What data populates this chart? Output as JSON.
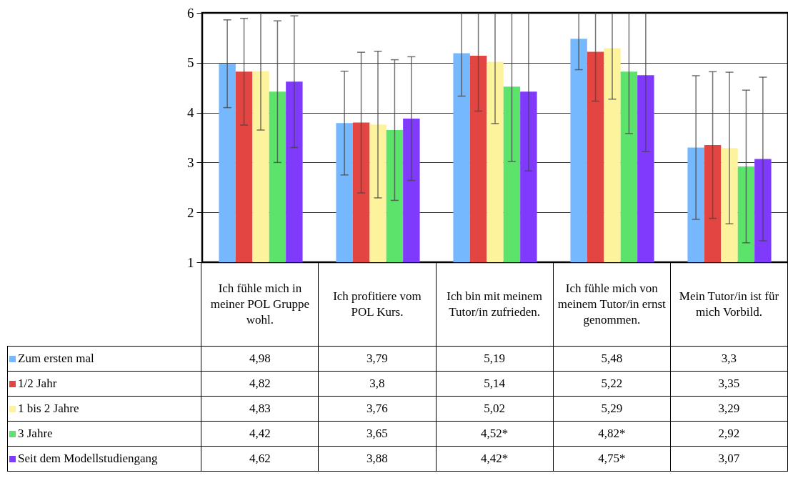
{
  "chart_data": {
    "type": "bar",
    "categories": [
      "Ich fühle mich in meiner POL Gruppe wohl.",
      "Ich profitiere vom POL Kurs.",
      "Ich bin mit meinem Tutor/in zufrieden.",
      "Ich fühle mich von meinem Tutor/in ernst genommen.",
      "Mein Tutor/in ist für mich Vorbild."
    ],
    "ylim": [
      1,
      6
    ],
    "yticks": [
      1,
      2,
      3,
      4,
      5,
      6
    ],
    "grid": "y",
    "legend": "bottom",
    "series": [
      {
        "name": "Zum ersten mal",
        "color": "#75b8fd",
        "values": [
          4.98,
          3.79,
          5.19,
          5.48,
          3.3
        ],
        "value_labels": [
          "4,98",
          "3,79",
          "5,19",
          "5,48",
          "3,3"
        ],
        "errors": [
          0.88,
          1.04,
          [
            4.33,
            6
          ],
          [
            4.86,
            6
          ],
          1.44
        ]
      },
      {
        "name": "1/2 Jahr",
        "color": "#e34642",
        "values": [
          4.82,
          3.8,
          5.14,
          5.22,
          3.35
        ],
        "value_labels": [
          "4,82",
          "3,8",
          "5,14",
          "5,22",
          "3,35"
        ],
        "errors": [
          1.07,
          1.41,
          [
            4.03,
            6
          ],
          [
            4.23,
            6
          ],
          1.47
        ]
      },
      {
        "name": "1 bis 2 Jahre",
        "color": "#fdf39c",
        "values": [
          4.83,
          3.76,
          5.02,
          5.29,
          3.29
        ],
        "value_labels": [
          "4,83",
          "3,76",
          "5,02",
          "5,29",
          "3,29"
        ],
        "errors": [
          [
            3.65,
            6
          ],
          1.47,
          [
            3.78,
            6
          ],
          [
            4.27,
            6
          ],
          1.52
        ]
      },
      {
        "name": "3 Jahre",
        "color": "#5ce36b",
        "values": [
          4.42,
          3.65,
          4.52,
          4.82,
          2.92
        ],
        "value_labels": [
          "4,42",
          "3,65",
          "4,52*",
          "4,82*",
          "2,92"
        ],
        "errors": [
          1.42,
          1.41,
          [
            3.02,
            6
          ],
          [
            3.58,
            6
          ],
          1.53
        ]
      },
      {
        "name": "Seit dem Modellstudiengang",
        "color": "#7f3afc",
        "values": [
          4.62,
          3.88,
          4.42,
          4.75,
          3.07
        ],
        "value_labels": [
          "4,62",
          "3,88",
          "4,42*",
          "4,75*",
          "3,07"
        ],
        "errors": [
          1.32,
          1.24,
          [
            2.83,
            6
          ],
          [
            3.22,
            6
          ],
          1.64
        ]
      }
    ]
  }
}
